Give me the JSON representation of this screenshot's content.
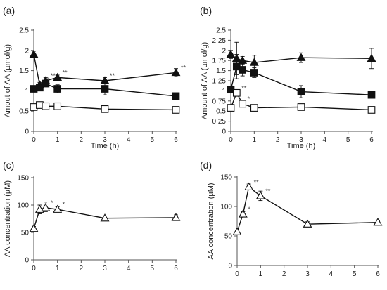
{
  "chart_data": [
    {
      "panel": "(a)",
      "type": "line",
      "ylabel": "Amout of AA (µmol/g)",
      "xlabel": "Time (h)",
      "xlim": [
        0,
        6
      ],
      "xticks": [
        0,
        1,
        2,
        3,
        4,
        5,
        6
      ],
      "ylim": [
        0,
        2.5
      ],
      "yticks": [
        "0",
        "0.5",
        "1",
        "1.5",
        "2",
        "2.5"
      ],
      "yticks_values": [
        0,
        0.5,
        1,
        1.5,
        2,
        2.5
      ],
      "series": [
        {
          "marker": "triangle-filled",
          "x": [
            0,
            0.25,
            0.5,
            1,
            3,
            6
          ],
          "y": [
            1.9,
            1.15,
            1.25,
            1.33,
            1.25,
            1.45
          ],
          "err": [
            0.08,
            0.06,
            0.08,
            0.06,
            0.08,
            0.1
          ],
          "sig": [
            "",
            "**",
            "**",
            "**",
            "**",
            "**"
          ]
        },
        {
          "marker": "square-filled",
          "x": [
            0,
            0.25,
            0.5,
            1,
            3,
            6
          ],
          "y": [
            1.05,
            1.08,
            1.18,
            1.05,
            1.05,
            0.87
          ],
          "err": [
            0.05,
            0.06,
            0.07,
            0.1,
            0.15,
            0.04
          ],
          "sig": [
            "",
            "",
            "",
            "",
            "",
            ""
          ]
        },
        {
          "marker": "square-open",
          "x": [
            0,
            0.25,
            0.5,
            1,
            3,
            6
          ],
          "y": [
            0.6,
            0.65,
            0.62,
            0.62,
            0.55,
            0.53
          ],
          "err": [
            0.06,
            0.05,
            0.05,
            0.04,
            0.03,
            0.03
          ],
          "sig": [
            "",
            "",
            "",
            "",
            "",
            ""
          ]
        }
      ]
    },
    {
      "panel": "(b)",
      "type": "line",
      "ylabel": "Amount of AA (µmol/g)",
      "xlabel": "Time (h)",
      "xlim": [
        0,
        6
      ],
      "xticks": [
        0,
        1,
        2,
        3,
        4,
        5,
        6
      ],
      "ylim": [
        0,
        2.5
      ],
      "yticks": [
        "0",
        "0.25",
        "0.5",
        "0.75",
        "1",
        "1.25",
        "1.5",
        "1.75",
        "2",
        "2.25",
        "2.5"
      ],
      "yticks_values": [
        0,
        0.25,
        0.5,
        0.75,
        1,
        1.25,
        1.5,
        1.75,
        2,
        2.25,
        2.5
      ],
      "series": [
        {
          "marker": "triangle-filled",
          "x": [
            0,
            0.25,
            0.5,
            1,
            3,
            6
          ],
          "y": [
            1.9,
            1.8,
            1.75,
            1.7,
            1.82,
            1.8
          ],
          "err": [
            0.1,
            0.4,
            0.1,
            0.18,
            0.12,
            0.25
          ],
          "sig": [
            "",
            "",
            "",
            "",
            "",
            ""
          ]
        },
        {
          "marker": "square-filled",
          "x": [
            0,
            0.25,
            0.5,
            1,
            3,
            6
          ],
          "y": [
            1.03,
            1.6,
            1.52,
            1.45,
            0.98,
            0.9
          ],
          "err": [
            0.05,
            0.3,
            0.15,
            0.12,
            0.15,
            0.05
          ],
          "sig": [
            "",
            "",
            "",
            "",
            "",
            ""
          ]
        },
        {
          "marker": "square-open",
          "x": [
            0,
            0.25,
            0.5,
            1,
            3,
            6
          ],
          "y": [
            0.58,
            0.95,
            0.68,
            0.58,
            0.6,
            0.53
          ],
          "err": [
            0.05,
            0.05,
            0.06,
            0.04,
            0.04,
            0.03
          ],
          "sig": [
            "",
            "**",
            "*",
            "",
            "",
            ""
          ]
        }
      ]
    },
    {
      "panel": "(c)",
      "type": "line",
      "ylabel": "AA concentration (µM)",
      "xlabel": "",
      "xlim": [
        0,
        6
      ],
      "xticks": [
        0,
        1,
        2,
        3,
        4,
        5,
        6
      ],
      "ylim": [
        0,
        150
      ],
      "yticks": [
        "0",
        "50",
        "100",
        "150"
      ],
      "yticks_values": [
        0,
        50,
        100,
        150
      ],
      "series": [
        {
          "marker": "triangle-open",
          "x": [
            0,
            0.25,
            0.5,
            1,
            3,
            6
          ],
          "y": [
            57,
            92,
            95,
            92,
            76,
            77
          ],
          "err": [
            4,
            8,
            7,
            5,
            4,
            5
          ],
          "sig": [
            "",
            "*",
            "*",
            "*",
            "",
            ""
          ]
        }
      ]
    },
    {
      "panel": "(d)",
      "type": "line",
      "ylabel": "AA concentration (µM)",
      "xlabel": "",
      "xlim": [
        0,
        6
      ],
      "xticks": [
        0,
        1,
        2,
        3,
        4,
        5,
        6
      ],
      "ylim": [
        0,
        150
      ],
      "yticks": [
        "0",
        "50",
        "100",
        "150"
      ],
      "yticks_values": [
        0,
        50,
        100,
        150
      ],
      "series": [
        {
          "marker": "triangle-open",
          "x": [
            0,
            0.25,
            0.5,
            1,
            3,
            6
          ],
          "y": [
            57,
            87,
            133,
            118,
            70,
            73
          ],
          "err": [
            3,
            4,
            5,
            8,
            4,
            3
          ],
          "sig": [
            "",
            "*",
            "**",
            "**",
            "",
            ""
          ]
        }
      ]
    }
  ]
}
